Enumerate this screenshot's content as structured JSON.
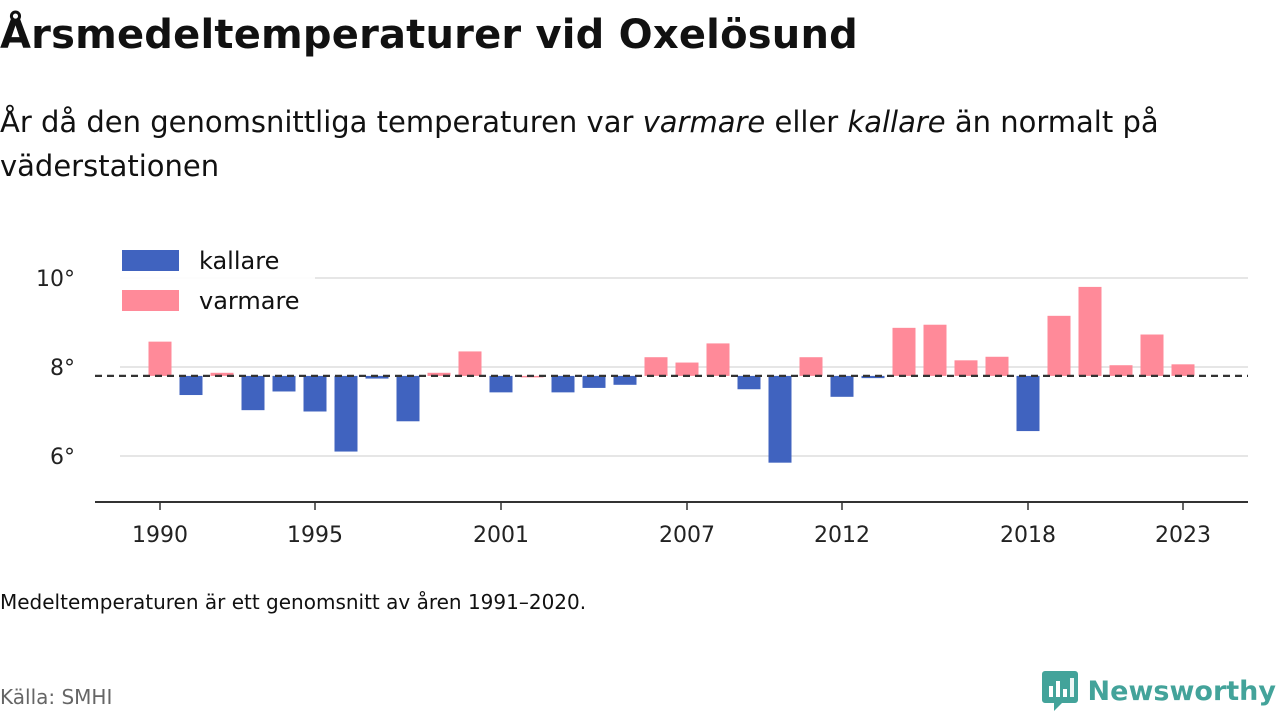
{
  "title": "Årsmedeltemperaturer vid Oxelösund",
  "subtitle": {
    "part1": "År då den genomsnittliga temperaturen var ",
    "em1": "varmare",
    "part2": " eller ",
    "em2": "kallare",
    "part3": " än normalt på väderstationen"
  },
  "note": "Medeltemperaturen är ett genomsnitt av åren 1991–2020.",
  "source": "Källa: SMHI",
  "brand": {
    "name": "Newsworthy",
    "icon": "newsworthy-chart-bubble-icon",
    "color": "#43a39a"
  },
  "chart_data": {
    "type": "bar",
    "baseline": 7.8,
    "ylim": [
      5,
      11
    ],
    "yticks": [
      6,
      8,
      10
    ],
    "ytick_labels": [
      "6°",
      "8°",
      "10°"
    ],
    "xticks": [
      1990,
      1995,
      2001,
      2007,
      2012,
      2018,
      2023
    ],
    "xtick_labels": [
      "1990",
      "1995",
      "2001",
      "2007",
      "2012",
      "2018",
      "2023"
    ],
    "legend": {
      "placement": "top-left",
      "items": [
        {
          "key": "kallare",
          "label": "kallare",
          "color": "#4063bf"
        },
        {
          "key": "varmare",
          "label": "varmare",
          "color": "#ff8a99"
        }
      ]
    },
    "colors": {
      "cold": "#4063bf",
      "warm": "#ff8a99",
      "baseline": "#333333",
      "grid": "#dddddd",
      "axis": "#333333"
    },
    "years": [
      1990,
      1991,
      1992,
      1993,
      1994,
      1995,
      1996,
      1997,
      1998,
      1999,
      2000,
      2001,
      2002,
      2003,
      2004,
      2005,
      2006,
      2007,
      2008,
      2009,
      2010,
      2011,
      2012,
      2013,
      2014,
      2015,
      2016,
      2017,
      2018,
      2019,
      2020,
      2021,
      2022,
      2023
    ],
    "values": [
      8.57,
      7.37,
      7.87,
      7.03,
      7.45,
      7.0,
      6.1,
      7.74,
      6.78,
      7.87,
      8.35,
      7.43,
      7.8,
      7.43,
      7.53,
      7.6,
      8.22,
      8.1,
      8.53,
      7.5,
      5.85,
      8.22,
      7.33,
      7.75,
      8.88,
      8.95,
      8.15,
      8.23,
      6.56,
      9.15,
      9.8,
      8.04,
      8.73,
      8.06
    ]
  }
}
